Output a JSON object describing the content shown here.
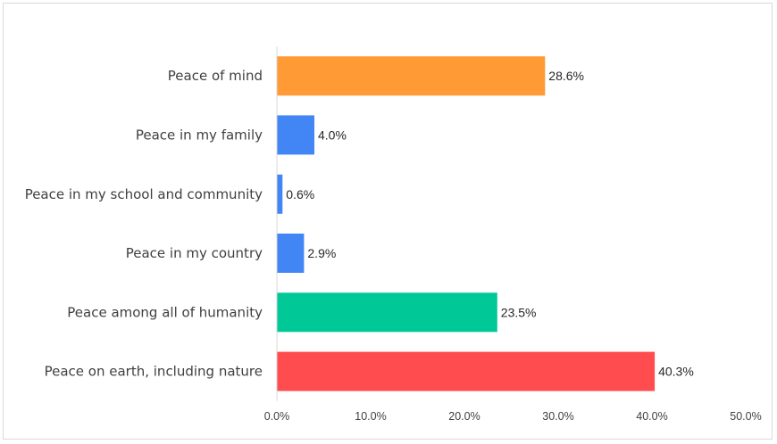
{
  "chart_data": {
    "type": "bar",
    "orientation": "horizontal",
    "categories": [
      "Peace of mind",
      "Peace in my family",
      "Peace in my school and community",
      "Peace in my country",
      "Peace among all of humanity",
      "Peace on earth, including nature"
    ],
    "values": [
      28.6,
      4.0,
      0.6,
      2.9,
      23.5,
      40.3
    ],
    "value_labels": [
      "28.6%",
      "4.0%",
      "0.6%",
      "2.9%",
      "23.5%",
      "40.3%"
    ],
    "bar_colors": [
      "#FF9A35",
      "#4285F4",
      "#4285F4",
      "#4285F4",
      "#00C896",
      "#FF4D4F"
    ],
    "xlim": [
      0,
      50
    ],
    "xticks": [
      0,
      10,
      20,
      30,
      40,
      50
    ],
    "xtick_labels": [
      "0.0%",
      "10.0%",
      "20.0%",
      "30.0%",
      "40.0%",
      "50.0%"
    ],
    "grid": false,
    "title": "",
    "xlabel": "",
    "ylabel": ""
  }
}
